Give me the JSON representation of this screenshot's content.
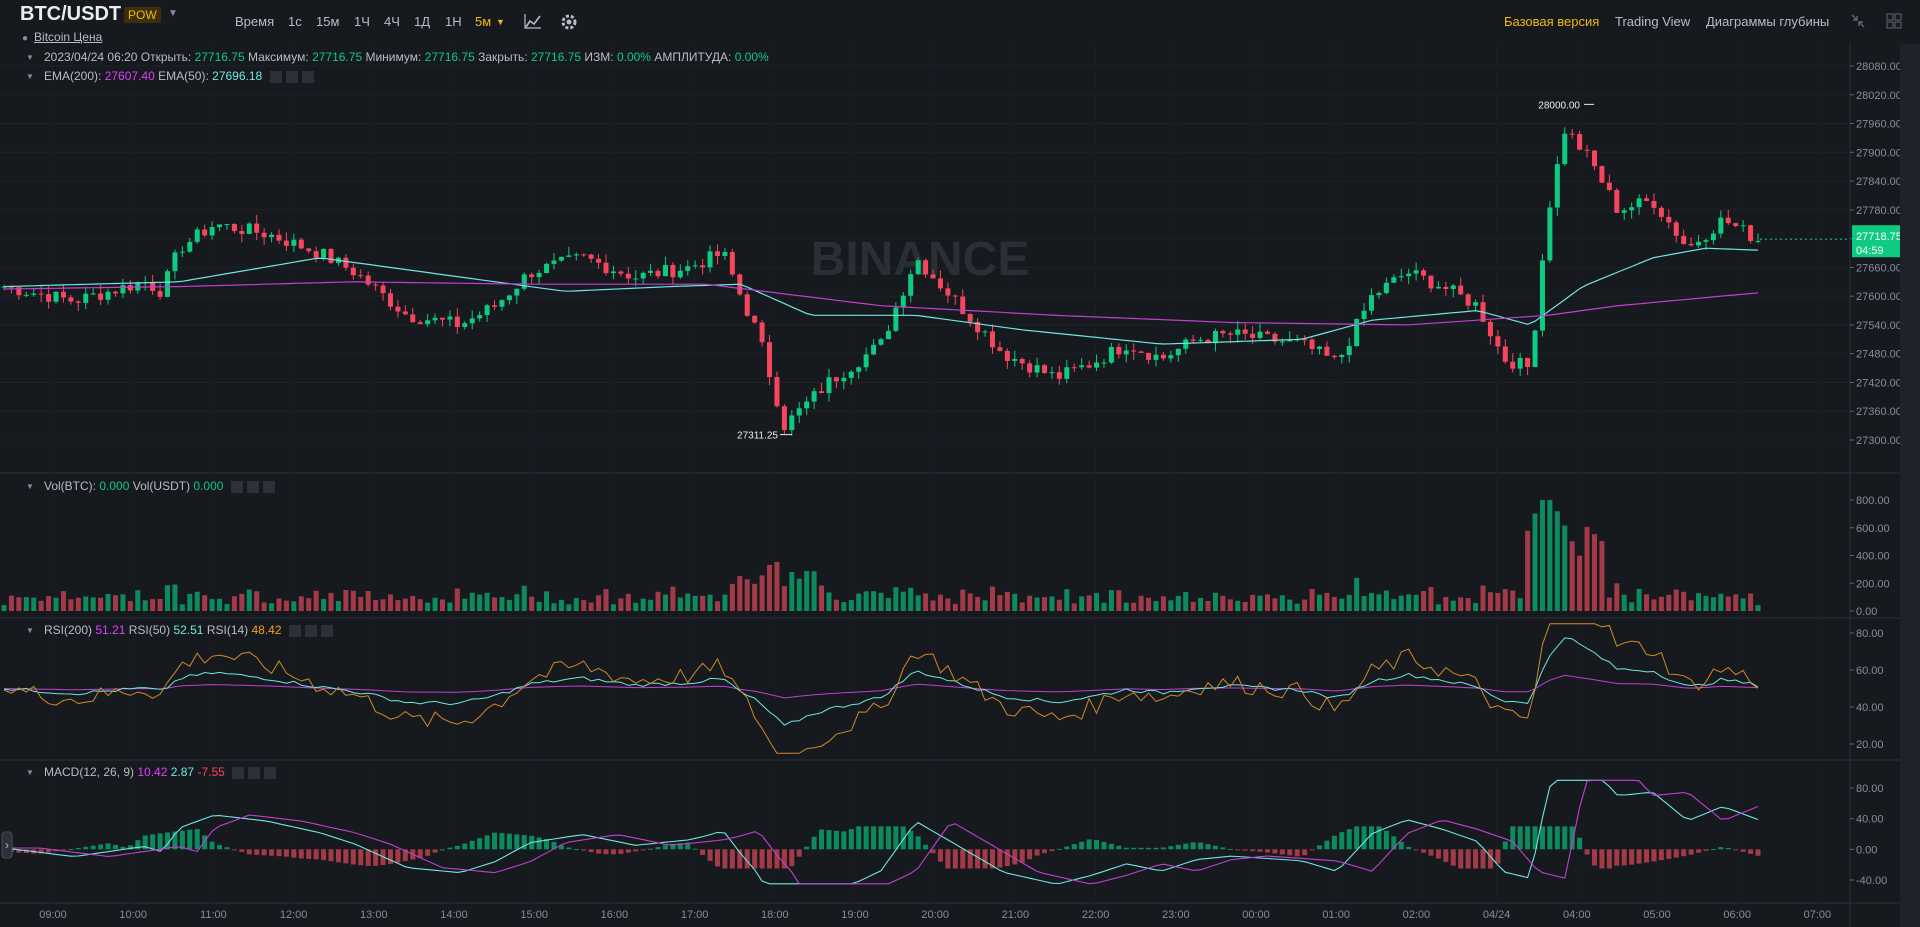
{
  "header": {
    "symbol": "BTC/USDT",
    "badge": "POW",
    "subtitle": "Bitcoin Цена",
    "timeframes": [
      "Время",
      "1с",
      "15м",
      "1Ч",
      "4Ч",
      "1Д",
      "1Н",
      "5м"
    ],
    "active_timeframe": "5м",
    "right_links": [
      "Базовая версия",
      "Trading View",
      "Диаграммы глубины"
    ],
    "active_link": "Базовая версия"
  },
  "legend": {
    "ohlc": {
      "date": "2023/04/24 06:20",
      "open_label": "Открыть:",
      "open": "27716.75",
      "high_label": "Максимум:",
      "high": "27716.75",
      "low_label": "Минимум:",
      "low": "27716.75",
      "close_label": "Закрыть:",
      "close": "27716.75",
      "chg_label": "ИЗМ:",
      "chg": "0.00%",
      "amp_label": "АМПЛИТУДА:",
      "amp": "0.00%"
    },
    "ema": {
      "ema200_label": "EMA(200):",
      "ema200": "27607.40",
      "ema50_label": "EMA(50):",
      "ema50": "27696.18"
    },
    "vol": {
      "btc_label": "Vol(BTC):",
      "btc": "0.000",
      "usdt_label": "Vol(USDT)",
      "usdt": "0.000"
    },
    "rsi": {
      "r200_label": "RSI(200)",
      "r200": "51.21",
      "r50_label": "RSI(50)",
      "r50": "52.51",
      "r14_label": "RSI(14)",
      "r14": "48.42"
    },
    "macd": {
      "label": "MACD(12, 26, 9)",
      "macd": "10.42",
      "signal": "2.87",
      "hist": "-7.55"
    }
  },
  "chart_data": {
    "type": "candlestick",
    "price_label": "27718.75",
    "countdown": "04:59",
    "high_marker": "28000.00",
    "low_marker": "27311.25",
    "watermark": "BINANCE",
    "price_ticks": [
      "28080.00",
      "28020.00",
      "27960.00",
      "27900.00",
      "27840.00",
      "27780.00",
      "27720.00",
      "27660.00",
      "27600.00",
      "27540.00",
      "27480.00",
      "27420.00",
      "27360.00",
      "27300.00"
    ],
    "price_values": [
      28080,
      28020,
      27960,
      27900,
      27840,
      27780,
      27720,
      27660,
      27600,
      27540,
      27480,
      27420,
      27360,
      27300
    ],
    "vol_ticks": [
      "800.00",
      "600.00",
      "400.00",
      "200.00",
      "0.00"
    ],
    "vol_values": [
      800,
      600,
      400,
      200,
      0
    ],
    "rsi_ticks": [
      "80.00",
      "60.00",
      "40.00",
      "20.00"
    ],
    "rsi_values": [
      80,
      60,
      40,
      20
    ],
    "macd_ticks": [
      "80.00",
      "40.00",
      "0.00",
      "-40.00"
    ],
    "macd_values": [
      80,
      40,
      0,
      -40
    ],
    "time_ticks": [
      "09:00",
      "10:00",
      "11:00",
      "12:00",
      "13:00",
      "14:00",
      "15:00",
      "16:00",
      "17:00",
      "18:00",
      "19:00",
      "20:00",
      "21:00",
      "22:00",
      "23:00",
      "00:00",
      "01:00",
      "02:00",
      "04/24",
      "04:00",
      "05:00",
      "06:00",
      "07:00"
    ],
    "price_path": [
      [
        0,
        27620
      ],
      [
        0.04,
        27590
      ],
      [
        0.08,
        27630
      ],
      [
        0.09,
        27610
      ],
      [
        0.1,
        27700
      ],
      [
        0.12,
        27750
      ],
      [
        0.15,
        27730
      ],
      [
        0.18,
        27690
      ],
      [
        0.2,
        27650
      ],
      [
        0.23,
        27560
      ],
      [
        0.26,
        27540
      ],
      [
        0.28,
        27580
      ],
      [
        0.3,
        27650
      ],
      [
        0.33,
        27680
      ],
      [
        0.36,
        27640
      ],
      [
        0.39,
        27660
      ],
      [
        0.41,
        27690
      ],
      [
        0.42,
        27600
      ],
      [
        0.43,
        27520
      ],
      [
        0.445,
        27330
      ],
      [
        0.47,
        27420
      ],
      [
        0.5,
        27500
      ],
      [
        0.52,
        27680
      ],
      [
        0.54,
        27600
      ],
      [
        0.57,
        27480
      ],
      [
        0.6,
        27430
      ],
      [
        0.62,
        27460
      ],
      [
        0.64,
        27500
      ],
      [
        0.66,
        27470
      ],
      [
        0.68,
        27510
      ],
      [
        0.7,
        27520
      ],
      [
        0.72,
        27510
      ],
      [
        0.74,
        27500
      ],
      [
        0.76,
        27460
      ],
      [
        0.78,
        27600
      ],
      [
        0.8,
        27650
      ],
      [
        0.82,
        27620
      ],
      [
        0.84,
        27580
      ],
      [
        0.855,
        27470
      ],
      [
        0.87,
        27450
      ],
      [
        0.88,
        27770
      ],
      [
        0.89,
        27950
      ],
      [
        0.905,
        27880
      ],
      [
        0.92,
        27780
      ],
      [
        0.94,
        27800
      ],
      [
        0.96,
        27700
      ],
      [
        0.98,
        27760
      ],
      [
        1,
        27718
      ]
    ],
    "ema50_path": [
      [
        0,
        27620
      ],
      [
        0.1,
        27630
      ],
      [
        0.18,
        27680
      ],
      [
        0.26,
        27640
      ],
      [
        0.32,
        27610
      ],
      [
        0.38,
        27620
      ],
      [
        0.42,
        27625
      ],
      [
        0.46,
        27560
      ],
      [
        0.52,
        27560
      ],
      [
        0.58,
        27530
      ],
      [
        0.66,
        27500
      ],
      [
        0.74,
        27510
      ],
      [
        0.78,
        27550
      ],
      [
        0.84,
        27570
      ],
      [
        0.87,
        27540
      ],
      [
        0.9,
        27620
      ],
      [
        0.94,
        27680
      ],
      [
        0.97,
        27700
      ],
      [
        1,
        27696
      ]
    ],
    "ema200_path": [
      [
        0,
        27615
      ],
      [
        0.1,
        27620
      ],
      [
        0.2,
        27630
      ],
      [
        0.3,
        27625
      ],
      [
        0.4,
        27625
      ],
      [
        0.5,
        27580
      ],
      [
        0.6,
        27560
      ],
      [
        0.7,
        27545
      ],
      [
        0.8,
        27540
      ],
      [
        0.88,
        27560
      ],
      [
        0.92,
        27580
      ],
      [
        1,
        27607
      ]
    ]
  }
}
